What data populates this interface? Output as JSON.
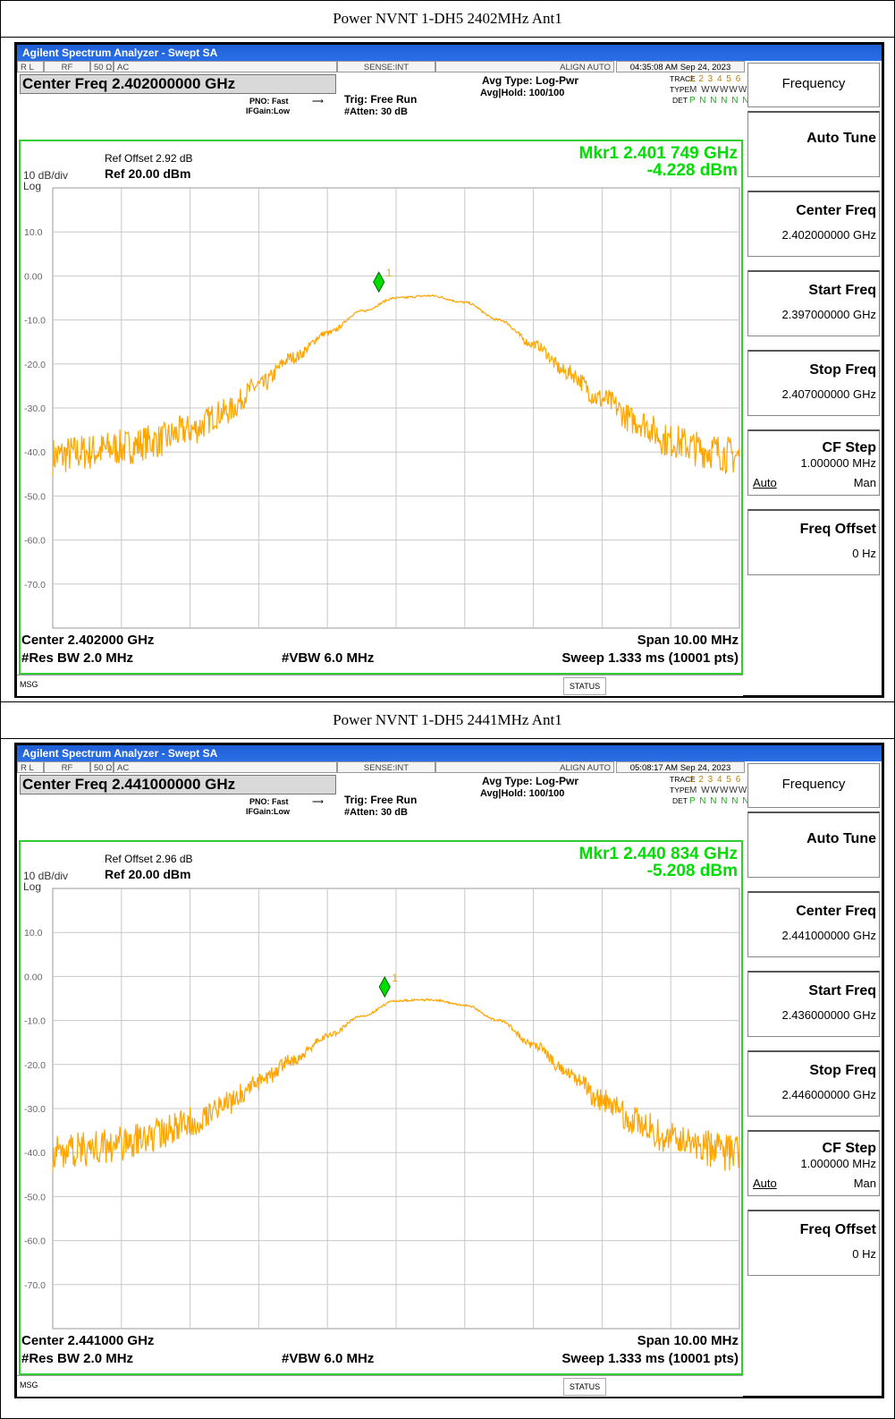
{
  "captions": [
    "Power NVNT 1-DH5 2402MHz Ant1",
    "Power NVNT 1-DH5 2441MHz Ant1"
  ],
  "colors": {
    "trace": "#ffa500",
    "marker": "#00dd00",
    "graticule_border": "#33cc33",
    "titlebar": "#1f5fd6"
  },
  "panels": [
    {
      "title": "Agilent Spectrum Analyzer - Swept SA",
      "statusbar": {
        "rl": "R L",
        "rf": "RF",
        "ohm": "50 Ω",
        "ac": "AC",
        "sense": "SENSE:INT",
        "align": "ALIGN AUTO",
        "datetime": "04:35:08 AM Sep 24, 2023"
      },
      "center_freq_title": "Center Freq 2.402000000 GHz",
      "pno": "PNO: Fast",
      "ifgain": "IFGain:Low",
      "trig": "Trig: Free Run",
      "atten": "#Atten: 30 dB",
      "avg_type": "Avg Type: Log-Pwr",
      "avg_hold": "Avg|Hold: 100/100",
      "trace_label": "TRACE",
      "trace_nums": "1 2 3 4 5 6",
      "type_label": "TYPE",
      "type_val": "M WWWWW",
      "det_label": "DET",
      "det_val": "P N N N N N",
      "marker_freq": "Mkr1 2.401 749 GHz",
      "marker_level": "-4.228 dBm",
      "ref_offset": "Ref Offset 2.92 dB",
      "ref_level": "Ref 20.00 dBm",
      "scale_div": "10 dB/div",
      "scale_type": "Log",
      "marker_num": "1",
      "bottom": {
        "center": "Center 2.402000 GHz",
        "span": "Span 10.00 MHz",
        "rbw": "#Res BW 2.0 MHz",
        "vbw": "#VBW 6.0 MHz",
        "sweep": "Sweep  1.333 ms (10001 pts)"
      },
      "msg": "MSG",
      "status": "STATUS",
      "menu": {
        "header": "Frequency",
        "auto_tune": "Auto Tune",
        "center_freq": {
          "label": "Center Freq",
          "value": "2.402000000 GHz"
        },
        "start_freq": {
          "label": "Start Freq",
          "value": "2.397000000 GHz"
        },
        "stop_freq": {
          "label": "Stop Freq",
          "value": "2.407000000 GHz"
        },
        "cf_step": {
          "label": "CF Step",
          "value": "1.000000 MHz",
          "auto": "Auto",
          "man": "Man"
        },
        "freq_offset": {
          "label": "Freq Offset",
          "value": "0 Hz"
        }
      }
    },
    {
      "title": "Agilent Spectrum Analyzer - Swept SA",
      "statusbar": {
        "rl": "R L",
        "rf": "RF",
        "ohm": "50 Ω",
        "ac": "AC",
        "sense": "SENSE:INT",
        "align": "ALIGN AUTO",
        "datetime": "05:08:17 AM Sep 24, 2023"
      },
      "center_freq_title": "Center Freq 2.441000000 GHz",
      "pno": "PNO: Fast",
      "ifgain": "IFGain:Low",
      "trig": "Trig: Free Run",
      "atten": "#Atten: 30 dB",
      "avg_type": "Avg Type: Log-Pwr",
      "avg_hold": "Avg|Hold: 100/100",
      "trace_label": "TRACE",
      "trace_nums": "1 2 3 4 5 6",
      "type_label": "TYPE",
      "type_val": "M WWWWW",
      "det_label": "DET",
      "det_val": "P N N N N N",
      "marker_freq": "Mkr1 2.440 834 GHz",
      "marker_level": "-5.208 dBm",
      "ref_offset": "Ref Offset 2.96 dB",
      "ref_level": "Ref 20.00 dBm",
      "scale_div": "10 dB/div",
      "scale_type": "Log",
      "marker_num": "1",
      "bottom": {
        "center": "Center 2.441000 GHz",
        "span": "Span 10.00 MHz",
        "rbw": "#Res BW 2.0 MHz",
        "vbw": "#VBW 6.0 MHz",
        "sweep": "Sweep  1.333 ms (10001 pts)"
      },
      "msg": "MSG",
      "status": "STATUS",
      "menu": {
        "header": "Frequency",
        "auto_tune": "Auto Tune",
        "center_freq": {
          "label": "Center Freq",
          "value": "2.441000000 GHz"
        },
        "start_freq": {
          "label": "Start Freq",
          "value": "2.436000000 GHz"
        },
        "stop_freq": {
          "label": "Stop Freq",
          "value": "2.446000000 GHz"
        },
        "cf_step": {
          "label": "CF Step",
          "value": "1.000000 MHz",
          "auto": "Auto",
          "man": "Man"
        },
        "freq_offset": {
          "label": "Freq Offset",
          "value": "0 Hz"
        }
      }
    }
  ],
  "chart_data": [
    {
      "type": "line",
      "title": "",
      "xlabel": "",
      "ylabel": "",
      "xlim": [
        2.397,
        2.407
      ],
      "ylim": [
        -80,
        20
      ],
      "y_ticks": [
        "10.0",
        "0.00",
        "-10.0",
        "-20.0",
        "-30.0",
        "-40.0",
        "-50.0",
        "-60.0",
        "-70.0"
      ],
      "grid": true,
      "series": [
        {
          "x": [
            2.397,
            2.3975,
            2.398,
            2.3985,
            2.399,
            2.3995,
            2.4,
            2.4005,
            2.401,
            2.4015,
            2.402,
            2.4025,
            2.403,
            2.4035,
            2.404,
            2.4045,
            2.405,
            2.4055,
            2.406,
            2.4065,
            2.407
          ],
          "values": [
            -41,
            -40,
            -39,
            -37.5,
            -35,
            -31,
            -25,
            -18.5,
            -13,
            -8,
            -5,
            -4.5,
            -6,
            -10,
            -15.5,
            -22,
            -28,
            -33,
            -37.5,
            -39.5,
            -41
          ]
        }
      ],
      "marker": {
        "label": "1",
        "x": 2.401749,
        "y": -4.228
      }
    },
    {
      "type": "line",
      "title": "",
      "xlabel": "",
      "ylabel": "",
      "xlim": [
        2.436,
        2.446
      ],
      "ylim": [
        -80,
        20
      ],
      "y_ticks": [
        "10.0",
        "0.00",
        "-10.0",
        "-20.0",
        "-30.0",
        "-40.0",
        "-50.0",
        "-60.0",
        "-70.0"
      ],
      "grid": true,
      "series": [
        {
          "x": [
            2.436,
            2.4365,
            2.437,
            2.4375,
            2.438,
            2.4385,
            2.439,
            2.4395,
            2.44,
            2.4405,
            2.441,
            2.4415,
            2.442,
            2.4425,
            2.443,
            2.4435,
            2.444,
            2.4445,
            2.445,
            2.4455,
            2.446
          ],
          "values": [
            -40,
            -39,
            -38,
            -36,
            -33,
            -29,
            -24,
            -19,
            -13.5,
            -9,
            -5.5,
            -5.3,
            -6.5,
            -10,
            -15.5,
            -22,
            -28,
            -33,
            -37,
            -39,
            -40.5
          ]
        }
      ],
      "marker": {
        "label": "1",
        "x": 2.440834,
        "y": -5.208
      }
    }
  ]
}
